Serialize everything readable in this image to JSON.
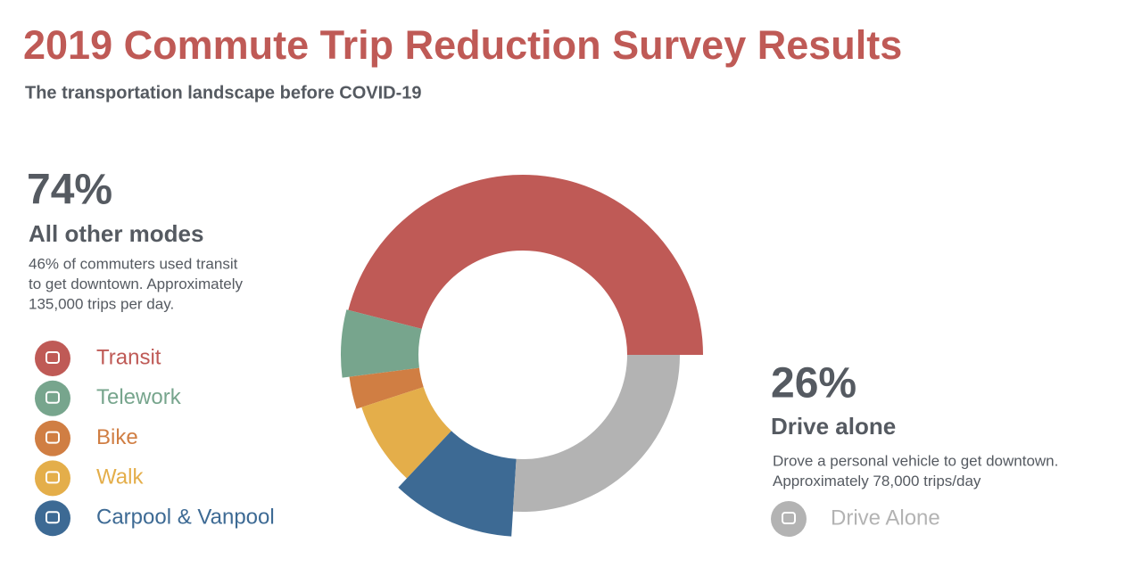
{
  "chart_data": {
    "type": "donut",
    "title": "2019 Commute Trip Reduction Survey Results",
    "subtitle": "The transportation landscape before COVID-19",
    "series": [
      {
        "name": "Transit",
        "color": "#bf5a56",
        "value": 46
      },
      {
        "name": "Telework",
        "color": "#77a58d",
        "value": 6
      },
      {
        "name": "Bike",
        "color": "#d07e43",
        "value": 3
      },
      {
        "name": "Walk",
        "color": "#e4ae4a",
        "value": 8
      },
      {
        "name": "Carpool & Vanpool",
        "color": "#3d6a94",
        "value": 11
      },
      {
        "name": "Drive Alone",
        "color": "#b3b3b3",
        "value": 26
      }
    ],
    "annotations": [
      {
        "share": {
          "value": 74,
          "label": "74%"
        },
        "heading": "All other modes",
        "lines": [
          "46% of commuters used transit",
          "to get downtown. Approximately",
          "135,000 trips per day."
        ]
      },
      {
        "share": {
          "value": 26,
          "label": "26%"
        },
        "heading": "Drive alone",
        "lines": [
          "Drove a personal vehicle to get downtown.",
          "Approximately 78,000 trips/day"
        ]
      }
    ]
  }
}
